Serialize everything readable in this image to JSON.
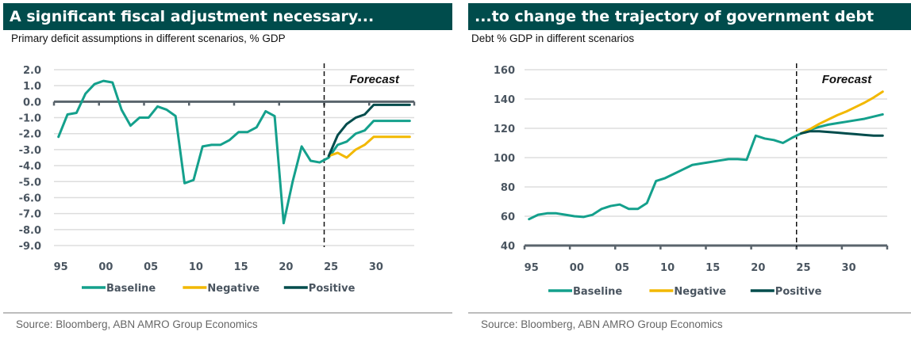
{
  "colors": {
    "header_bg": "#004c4c",
    "baseline": "#14a08c",
    "negative": "#f2b800",
    "positive": "#004c4c",
    "axis": "#5a646c",
    "grid": "#dddddd"
  },
  "left": {
    "header": "A significant fiscal adjustment necessary...",
    "subtitle": "Primary deficit assumptions in different scenarios, % GDP",
    "source": "Source: Bloomberg, ABN AMRO Group Economics"
  },
  "right": {
    "header": "...to change the trajectory of government debt",
    "subtitle": "Debt % GDP in different scenarios",
    "source": "Source: Bloomberg, ABN AMRO Group Economics"
  },
  "chart_data": [
    {
      "type": "line",
      "title": "A significant fiscal adjustment necessary...",
      "subtitle": "Primary deficit assumptions in different scenarios, % GDP",
      "xlabel": "",
      "ylabel": "",
      "xlim": [
        1994.5,
        2034.5
      ],
      "ylim": [
        -9.0,
        2.0
      ],
      "yticks": [
        2.0,
        1.0,
        0.0,
        -1.0,
        -2.0,
        -3.0,
        -4.0,
        -5.0,
        -6.0,
        -7.0,
        -8.0,
        -9.0
      ],
      "ytick_labels": [
        "2.0",
        "1.0",
        "0.0",
        "-1.0",
        "-2.0",
        "-3.0",
        "-4.0",
        "-5.0",
        "-6.0",
        "-7.0",
        "-8.0",
        "-9.0"
      ],
      "xticks": [
        1995,
        2000,
        2005,
        2010,
        2015,
        2020,
        2025,
        2030
      ],
      "xtick_labels": [
        "95",
        "00",
        "05",
        "10",
        "15",
        "20",
        "25",
        "30"
      ],
      "zero_axis": 0.0,
      "grid": true,
      "forecast_start": 2025,
      "annotation": "Forecast",
      "legend": [
        "Baseline",
        "Negative",
        "Positive"
      ],
      "legend_position": "bottom",
      "series": [
        {
          "name": "Baseline",
          "x": [
            1995,
            1996,
            1997,
            1998,
            1999,
            2000,
            2001,
            2002,
            2003,
            2004,
            2005,
            2006,
            2007,
            2008,
            2009,
            2010,
            2011,
            2012,
            2013,
            2014,
            2015,
            2016,
            2017,
            2018,
            2019,
            2020,
            2021,
            2022,
            2023,
            2024,
            2025,
            2026,
            2027,
            2028,
            2029,
            2030,
            2031,
            2032,
            2033,
            2034
          ],
          "values": [
            -2.2,
            -0.8,
            -0.7,
            0.5,
            1.1,
            1.3,
            1.2,
            -0.5,
            -1.5,
            -1.0,
            -1.0,
            -0.3,
            -0.5,
            -0.9,
            -5.1,
            -4.9,
            -2.8,
            -2.7,
            -2.7,
            -2.4,
            -1.9,
            -1.9,
            -1.6,
            -0.6,
            -0.9,
            -7.6,
            -5.0,
            -2.8,
            -3.7,
            -3.8,
            -3.5,
            -2.7,
            -2.5,
            -2.0,
            -1.8,
            -1.2,
            -1.2,
            -1.2,
            -1.2,
            -1.2
          ]
        },
        {
          "name": "Negative",
          "x": [
            2025,
            2026,
            2027,
            2028,
            2029,
            2030,
            2031,
            2032,
            2033,
            2034
          ],
          "values": [
            -3.4,
            -3.2,
            -3.5,
            -3.0,
            -2.7,
            -2.2,
            -2.2,
            -2.2,
            -2.2,
            -2.2
          ]
        },
        {
          "name": "Positive",
          "x": [
            2025,
            2026,
            2027,
            2028,
            2029,
            2030,
            2031,
            2032,
            2033,
            2034
          ],
          "values": [
            -3.4,
            -2.1,
            -1.4,
            -1.0,
            -0.8,
            -0.2,
            -0.2,
            -0.2,
            -0.2,
            -0.2
          ]
        }
      ]
    },
    {
      "type": "line",
      "title": "...to change the trajectory of government debt",
      "subtitle": "Debt % GDP in different scenarios",
      "xlabel": "",
      "ylabel": "",
      "xlim": [
        1994.5,
        2034.5
      ],
      "ylim": [
        40,
        160
      ],
      "yticks": [
        160,
        140,
        120,
        100,
        80,
        60,
        40
      ],
      "ytick_labels": [
        "160",
        "140",
        "120",
        "100",
        "80",
        "60",
        "40"
      ],
      "xticks": [
        1995,
        2000,
        2005,
        2010,
        2015,
        2020,
        2025,
        2030
      ],
      "xtick_labels": [
        "95",
        "00",
        "05",
        "10",
        "15",
        "20",
        "25",
        "30"
      ],
      "grid": true,
      "forecast_start": 2025,
      "annotation": "Forecast",
      "legend": [
        "Baseline",
        "Negative",
        "Positive"
      ],
      "legend_position": "bottom",
      "series": [
        {
          "name": "Baseline",
          "x": [
            1995,
            1996,
            1997,
            1998,
            1999,
            2000,
            2001,
            2002,
            2003,
            2004,
            2005,
            2006,
            2007,
            2008,
            2009,
            2010,
            2011,
            2012,
            2013,
            2014,
            2015,
            2016,
            2017,
            2018,
            2019,
            2020,
            2021,
            2022,
            2023,
            2024,
            2025,
            2026,
            2027,
            2028,
            2029,
            2030,
            2031,
            2032,
            2033,
            2034
          ],
          "values": [
            58,
            61,
            62,
            62,
            61,
            60,
            59.5,
            61,
            65,
            67,
            68,
            65,
            65,
            69,
            84,
            86,
            89,
            92,
            95,
            96,
            97,
            98,
            99,
            99,
            98.5,
            115,
            113,
            112,
            110,
            113.5,
            116.5,
            119,
            121,
            122.5,
            123.5,
            124.5,
            125.5,
            126.5,
            128,
            129.5
          ]
        },
        {
          "name": "Negative",
          "x": [
            2025,
            2026,
            2027,
            2028,
            2029,
            2030,
            2031,
            2032,
            2033,
            2034
          ],
          "values": [
            116.5,
            119.5,
            123,
            126,
            129,
            131.5,
            134.5,
            137.5,
            141,
            145
          ]
        },
        {
          "name": "Positive",
          "x": [
            2025,
            2026,
            2027,
            2028,
            2029,
            2030,
            2031,
            2032,
            2033,
            2034
          ],
          "values": [
            116.5,
            118,
            118,
            117.5,
            117,
            116.5,
            116,
            115.5,
            115,
            115
          ]
        }
      ]
    }
  ]
}
